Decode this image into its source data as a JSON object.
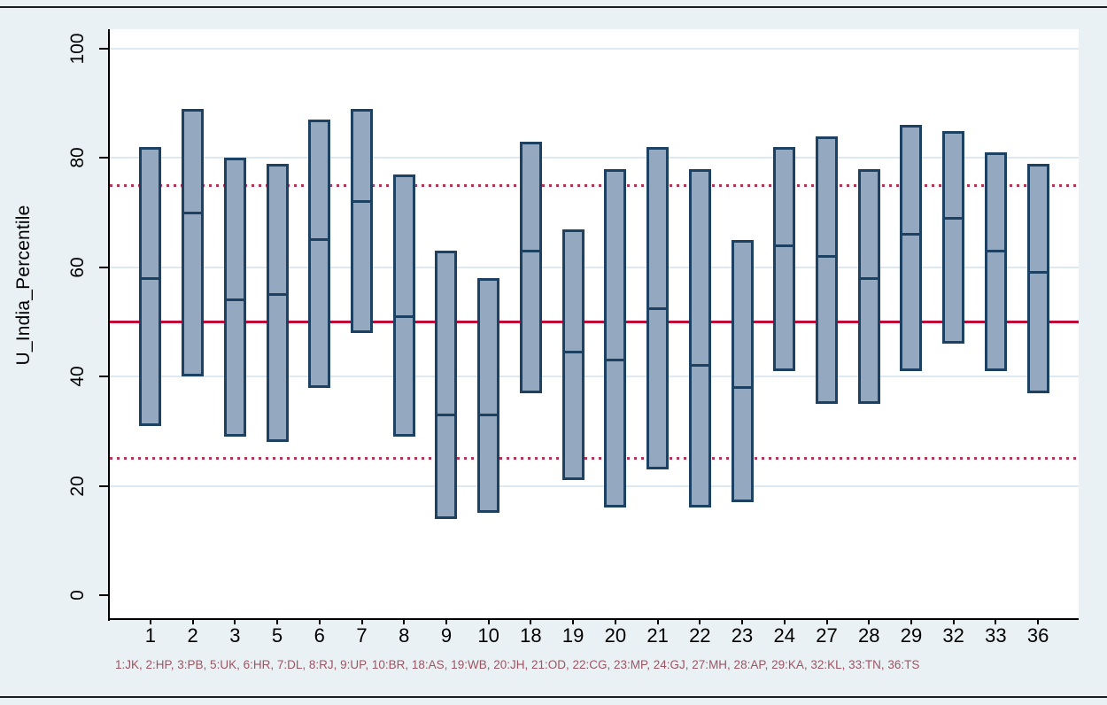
{
  "chart_data": {
    "type": "bar",
    "subtype": "floating-range-bars-with-median",
    "title": "",
    "xlabel": "",
    "ylabel": "U_India_Percentile",
    "ylim": [
      0,
      100
    ],
    "yticks": [
      0,
      20,
      40,
      60,
      80,
      100
    ],
    "grid": "horizontal",
    "categories": [
      "1",
      "2",
      "3",
      "5",
      "6",
      "7",
      "8",
      "9",
      "10",
      "18",
      "19",
      "20",
      "21",
      "22",
      "23",
      "24",
      "27",
      "28",
      "29",
      "32",
      "33",
      "36"
    ],
    "bars": [
      {
        "label": "1",
        "state": "JK",
        "low": 31,
        "mid": 58,
        "high": 82
      },
      {
        "label": "2",
        "state": "HP",
        "low": 40,
        "mid": 70,
        "high": 89
      },
      {
        "label": "3",
        "state": "PB",
        "low": 29,
        "mid": 54,
        "high": 80
      },
      {
        "label": "5",
        "state": "UK",
        "low": 28,
        "mid": 55,
        "high": 79
      },
      {
        "label": "6",
        "state": "HR",
        "low": 38,
        "mid": 65,
        "high": 87
      },
      {
        "label": "7",
        "state": "DL",
        "low": 48,
        "mid": 72,
        "high": 89
      },
      {
        "label": "8",
        "state": "RJ",
        "low": 29,
        "mid": 51,
        "high": 77
      },
      {
        "label": "9",
        "state": "UP",
        "low": 14,
        "mid": 33,
        "high": 63
      },
      {
        "label": "10",
        "state": "BR",
        "low": 15,
        "mid": 33,
        "high": 58
      },
      {
        "label": "18",
        "state": "AS",
        "low": 37,
        "mid": 63,
        "high": 83
      },
      {
        "label": "19",
        "state": "WB",
        "low": 21,
        "mid": 44.5,
        "high": 67
      },
      {
        "label": "20",
        "state": "JH",
        "low": 16,
        "mid": 43,
        "high": 78
      },
      {
        "label": "21",
        "state": "OD",
        "low": 23,
        "mid": 52.5,
        "high": 82
      },
      {
        "label": "22",
        "state": "CG",
        "low": 16,
        "mid": 42,
        "high": 78
      },
      {
        "label": "23",
        "state": "MP",
        "low": 17,
        "mid": 38,
        "high": 65
      },
      {
        "label": "24",
        "state": "GJ",
        "low": 41,
        "mid": 64,
        "high": 82
      },
      {
        "label": "27",
        "state": "MH",
        "low": 35,
        "mid": 62,
        "high": 84
      },
      {
        "label": "28",
        "state": "AP",
        "low": 35,
        "mid": 58,
        "high": 78
      },
      {
        "label": "29",
        "state": "KA",
        "low": 41,
        "mid": 66,
        "high": 86
      },
      {
        "label": "32",
        "state": "KL",
        "low": 46,
        "mid": 69,
        "high": 85
      },
      {
        "label": "33",
        "state": "TN",
        "low": 41,
        "mid": 63,
        "high": 81
      },
      {
        "label": "36",
        "state": "TS",
        "low": 37,
        "mid": 59,
        "high": 79
      }
    ],
    "reference_lines": [
      {
        "value": 50,
        "style": "solid",
        "color": "#c10534"
      },
      {
        "value": 75,
        "style": "dotted",
        "color": "#b23551"
      },
      {
        "value": 25,
        "style": "dotted",
        "color": "#b23551"
      }
    ],
    "legend_position": "footnote",
    "footnote": "1:JK, 2:HP, 3:PB, 5:UK, 6:HR, 7:DL, 8:RJ, 9:UP, 10:BR, 18:AS, 19:WB, 20:JH, 21:OD, 22:CG, 23:MP, 24:GJ, 27:MH, 28:AP, 29:KA, 32:KL, 33:TN, 36:TS"
  },
  "colors": {
    "page_background": "#e9f1f4",
    "plot_background": "#ffffff",
    "gridline": "#dde8f0",
    "bar_fill": "#94a9bf",
    "bar_border": "#1c4162",
    "median_line": "#1c4162",
    "reference_solid": "#c10534",
    "reference_dotted": "#b23551",
    "footnote_text": "#9c5562",
    "axis": "#000000"
  }
}
